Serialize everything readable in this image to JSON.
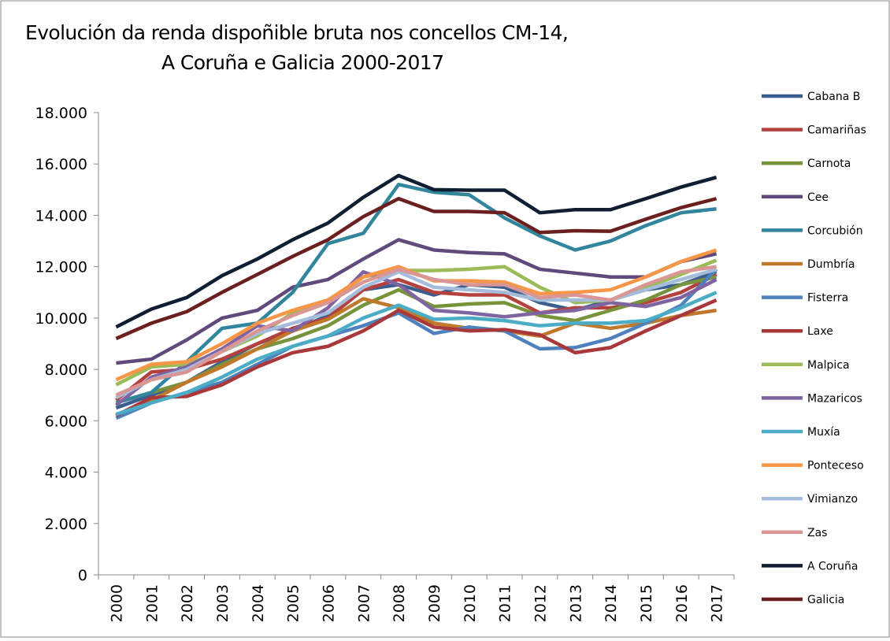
{
  "chart_data": {
    "type": "line",
    "title": [
      "Evolución da renda dispoñible bruta nos concellos CM-14,",
      "A Coruña e Galicia 2000-2017"
    ],
    "categories": [
      "2000",
      "2001",
      "2002",
      "2003",
      "2004",
      "2005",
      "2006",
      "2007",
      "2008",
      "2009",
      "2010",
      "2011",
      "2012",
      "2013",
      "2014",
      "2015",
      "2016",
      "2017"
    ],
    "ylim": [
      0,
      18000
    ],
    "yticks": [
      0,
      {
        "value": 2000,
        "label": "2.000"
      },
      {
        "value": 4000,
        "label": "4.000"
      },
      {
        "value": 6000,
        "label": "6.000"
      },
      {
        "value": 8000,
        "label": "8.000"
      },
      {
        "value": 10000,
        "label": "10.000"
      },
      {
        "value": 12000,
        "label": "12.000"
      },
      {
        "value": 14000,
        "label": "14.000"
      },
      {
        "value": 16000,
        "label": "16.000"
      },
      {
        "value": 18000,
        "label": "18.000"
      }
    ],
    "grid": false,
    "legend": "right",
    "series": [
      {
        "name": "Cabana B",
        "color": "#3a5f8f",
        "values": [
          6500,
          7000,
          7500,
          8300,
          9000,
          9500,
          10100,
          11100,
          11300,
          10900,
          11300,
          11200,
          10600,
          10300,
          10700,
          11100,
          11300,
          11800
        ]
      },
      {
        "name": "Camariñas",
        "color": "#b5413e",
        "values": [
          6800,
          7900,
          8000,
          8400,
          9000,
          9600,
          10000,
          11100,
          11500,
          11000,
          10900,
          10900,
          10200,
          10400,
          10400,
          10600,
          11000,
          11700
        ]
      },
      {
        "name": "Carnota",
        "color": "#77933c",
        "values": [
          6700,
          7100,
          7500,
          8200,
          8800,
          9200,
          9700,
          10500,
          11100,
          10450,
          10550,
          10600,
          10100,
          9900,
          10300,
          10700,
          11300,
          11600
        ]
      },
      {
        "name": "Cee",
        "color": "#604a7b",
        "values": [
          8250,
          8400,
          9150,
          10000,
          10300,
          11200,
          11500,
          12300,
          13050,
          12650,
          12550,
          12500,
          11900,
          11750,
          11600,
          11600,
          12200,
          12500
        ]
      },
      {
        "name": "Corcubión",
        "color": "#31859c",
        "values": [
          6700,
          7100,
          8300,
          9600,
          9800,
          11000,
          12900,
          13300,
          15200,
          14900,
          14800,
          13900,
          13200,
          12650,
          13000,
          13600,
          14100,
          14250
        ]
      },
      {
        "name": "Dumbría",
        "color": "#c0782a",
        "values": [
          6200,
          6800,
          7500,
          8100,
          8800,
          9500,
          9950,
          10750,
          10400,
          9800,
          9600,
          9500,
          9300,
          9800,
          9600,
          9800,
          10100,
          10300
        ]
      },
      {
        "name": "Fisterra",
        "color": "#4f81bd",
        "values": [
          6100,
          6700,
          7100,
          7500,
          8200,
          8900,
          9300,
          9700,
          10200,
          9400,
          9650,
          9500,
          8800,
          8850,
          9200,
          9800,
          10500,
          11900
        ]
      },
      {
        "name": "Laxe",
        "color": "#a9383a",
        "values": [
          6200,
          6900,
          6950,
          7400,
          8100,
          8650,
          8900,
          9500,
          10300,
          9650,
          9500,
          9550,
          9350,
          8650,
          8850,
          9500,
          10100,
          10700
        ]
      },
      {
        "name": "Malpica",
        "color": "#9bbb59",
        "values": [
          7400,
          8100,
          8200,
          8700,
          9300,
          10200,
          10600,
          11600,
          11850,
          11850,
          11900,
          12000,
          11200,
          10600,
          10700,
          11200,
          11700,
          12250
        ]
      },
      {
        "name": "Mazaricos",
        "color": "#8064a2",
        "values": [
          6600,
          7700,
          8100,
          8800,
          9700,
          9500,
          10400,
          11800,
          11300,
          10300,
          10200,
          10050,
          10200,
          10300,
          10600,
          10450,
          10800,
          11500
        ]
      },
      {
        "name": "Muxía",
        "color": "#4bacc6",
        "values": [
          6250,
          6700,
          7100,
          7700,
          8400,
          8900,
          9300,
          10000,
          10500,
          9950,
          10000,
          9900,
          9700,
          9800,
          9800,
          9900,
          10400,
          11000
        ]
      },
      {
        "name": "Ponteceso",
        "color": "#f79646",
        "values": [
          7600,
          8200,
          8300,
          9000,
          9800,
          10300,
          10700,
          11600,
          12000,
          11450,
          11450,
          11400,
          10950,
          11000,
          11100,
          11600,
          12200,
          12650
        ]
      },
      {
        "name": "Vimianzo",
        "color": "#a6bcdb",
        "values": [
          6900,
          7600,
          8000,
          8700,
          9400,
          9800,
          10200,
          11200,
          11800,
          11200,
          11100,
          11000,
          10700,
          10700,
          10700,
          11100,
          11500,
          11900
        ]
      },
      {
        "name": "Zas",
        "color": "#d99694",
        "values": [
          7000,
          7600,
          7900,
          8700,
          9500,
          10100,
          10600,
          11400,
          11900,
          11500,
          11300,
          11300,
          10800,
          10900,
          10700,
          11300,
          11800,
          12000
        ]
      },
      {
        "name": "A Coruña",
        "color": "#0f1e33",
        "values": [
          9650,
          10350,
          10800,
          11650,
          12300,
          13050,
          13700,
          14700,
          15550,
          15000,
          14980,
          14980,
          14100,
          14220,
          14220,
          14650,
          15100,
          15480
        ]
      },
      {
        "name": "Galicia",
        "color": "#6b1f1f",
        "values": [
          9200,
          9800,
          10250,
          11000,
          11700,
          12400,
          13050,
          13950,
          14650,
          14150,
          14150,
          14100,
          13330,
          13400,
          13380,
          13850,
          14300,
          14650
        ]
      }
    ]
  }
}
